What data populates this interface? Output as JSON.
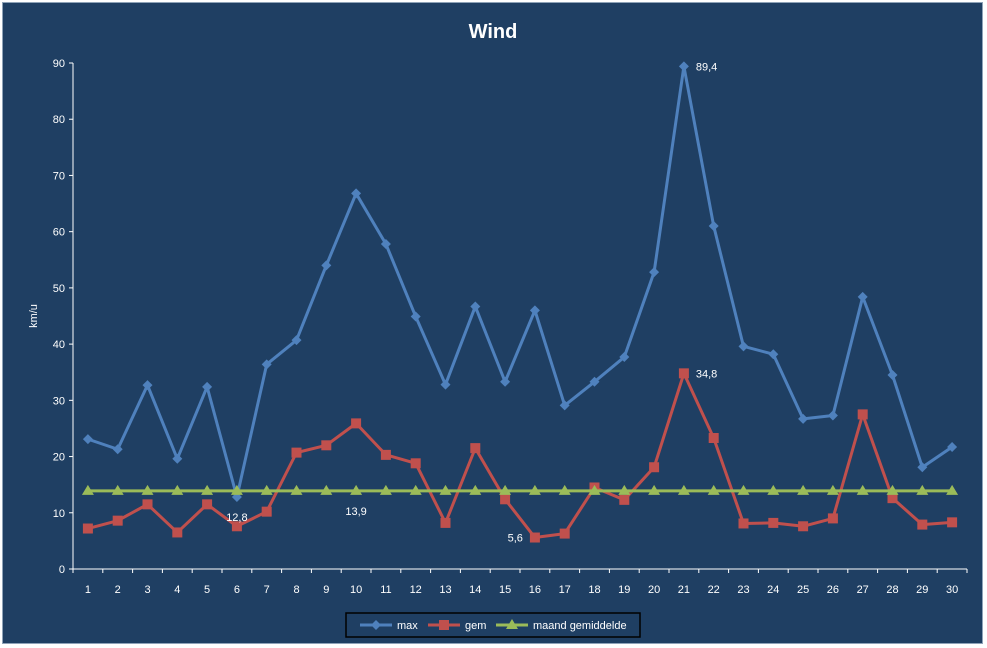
{
  "chart_data": {
    "type": "line",
    "title": "Wind",
    "xlabel": "",
    "ylabel": "km/u",
    "ylim": [
      0,
      90
    ],
    "yticks": [
      0,
      10,
      20,
      30,
      40,
      50,
      60,
      70,
      80,
      90
    ],
    "categories": [
      "1",
      "2",
      "3",
      "4",
      "5",
      "6",
      "7",
      "8",
      "9",
      "10",
      "11",
      "12",
      "13",
      "14",
      "15",
      "16",
      "17",
      "18",
      "19",
      "20",
      "21",
      "22",
      "23",
      "24",
      "25",
      "26",
      "27",
      "28",
      "29",
      "30"
    ],
    "series": [
      {
        "name": "max",
        "color": "#4f81bd",
        "marker": "diamond",
        "values": [
          23.1,
          21.3,
          32.7,
          19.6,
          32.4,
          12.8,
          36.4,
          40.7,
          54.0,
          66.8,
          57.8,
          44.9,
          32.8,
          46.7,
          33.3,
          46.0,
          29.1,
          33.3,
          37.7,
          52.8,
          89.4,
          61.0,
          39.6,
          38.2,
          26.7,
          27.3,
          48.4,
          34.5,
          18.1,
          21.7
        ]
      },
      {
        "name": "gem",
        "color": "#c0504d",
        "marker": "square",
        "values": [
          7.2,
          8.6,
          11.5,
          6.5,
          11.5,
          7.6,
          10.2,
          20.7,
          22.0,
          25.9,
          20.3,
          18.8,
          8.2,
          21.5,
          12.4,
          5.6,
          6.3,
          14.5,
          12.3,
          18.1,
          34.8,
          23.3,
          8.1,
          8.2,
          7.6,
          9.0,
          27.5,
          12.6,
          7.9,
          8.3
        ]
      },
      {
        "name": "maand gemiddelde",
        "color": "#9bbb59",
        "marker": "triangle",
        "values": [
          13.9,
          13.9,
          13.9,
          13.9,
          13.9,
          13.9,
          13.9,
          13.9,
          13.9,
          13.9,
          13.9,
          13.9,
          13.9,
          13.9,
          13.9,
          13.9,
          13.9,
          13.9,
          13.9,
          13.9,
          13.9,
          13.9,
          13.9,
          13.9,
          13.9,
          13.9,
          13.9,
          13.9,
          13.9,
          13.9
        ]
      }
    ],
    "data_labels": [
      {
        "series": 0,
        "index": 5,
        "text": "12,8",
        "side": "below"
      },
      {
        "series": 0,
        "index": 20,
        "text": "89,4",
        "side": "right"
      },
      {
        "series": 1,
        "index": 20,
        "text": "34,8",
        "side": "right"
      },
      {
        "series": 1,
        "index": 15,
        "text": "5,6",
        "side": "left"
      },
      {
        "series": 2,
        "index": 9,
        "text": "13,9",
        "side": "below"
      }
    ],
    "legend": "bottom",
    "grid": false
  }
}
